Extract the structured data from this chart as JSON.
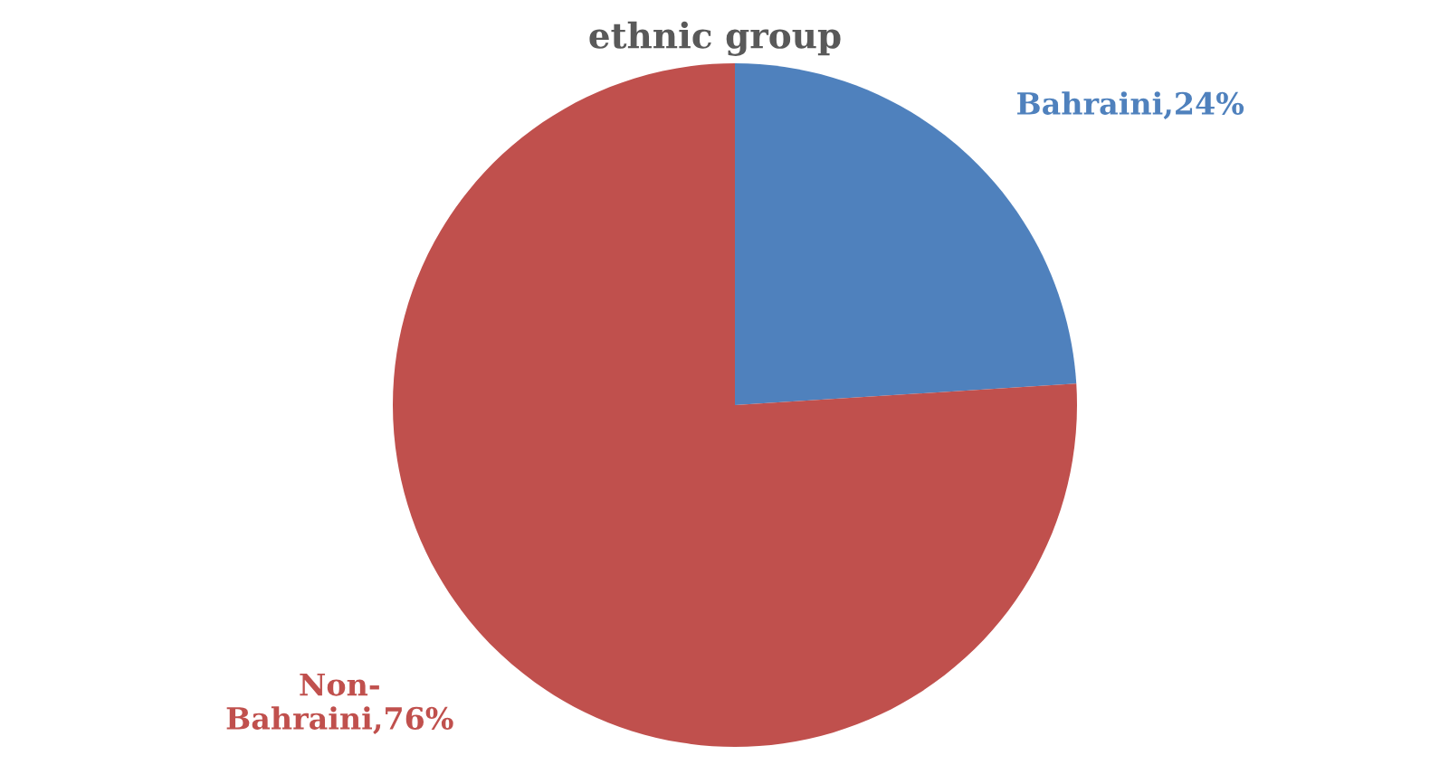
{
  "chart_data": {
    "type": "pie",
    "title": "ethnic group",
    "categories": [
      "Bahraini,24%",
      "Non-Bahraini,76%"
    ],
    "values": [
      24,
      76
    ],
    "colors": [
      "#4f81bd",
      "#c0504d"
    ],
    "legend": false
  }
}
